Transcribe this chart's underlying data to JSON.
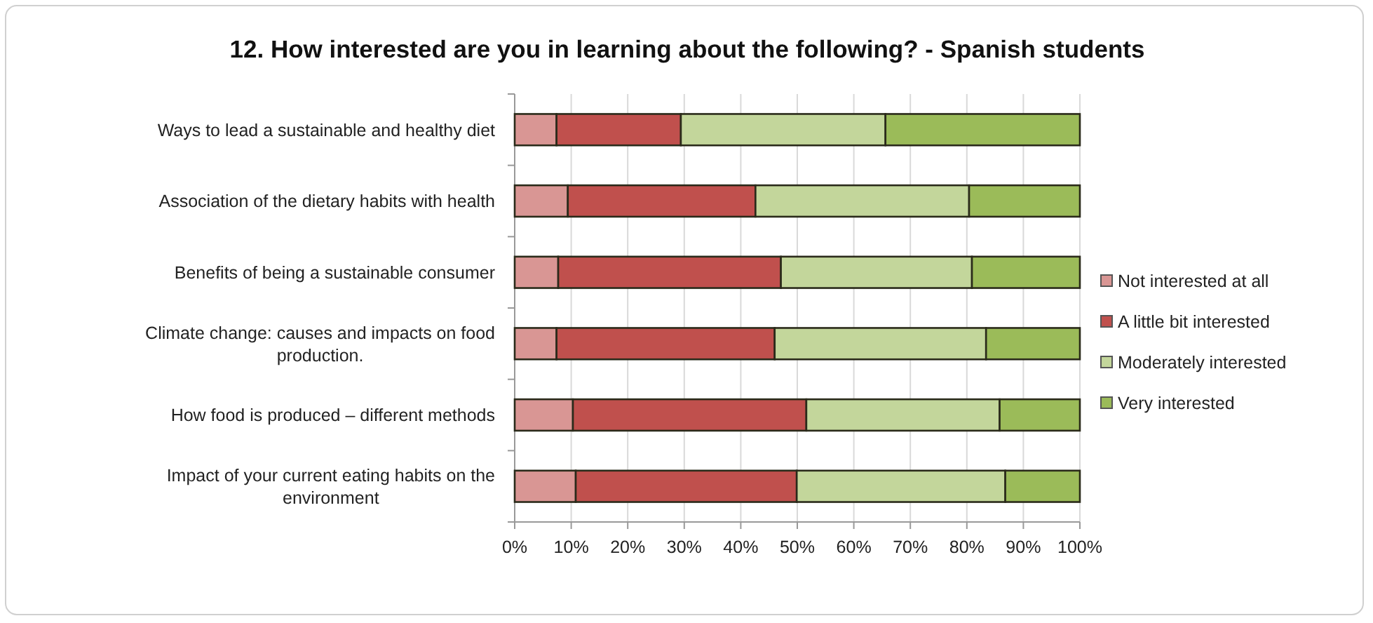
{
  "chart_data": {
    "type": "bar",
    "orientation": "horizontal",
    "stacked": true,
    "title": "12.  How interested are you in learning about the following? - Spanish students",
    "categories": [
      "Ways to lead a sustainable and healthy diet",
      "Association of the dietary habits with health",
      "Benefits of being a sustainable consumer",
      "Climate change: causes and impacts on food production.",
      "How food is produced – different methods",
      "Impact of your current eating habits on the environment"
    ],
    "series": [
      {
        "name": "Not interested at all",
        "color": "#d99694",
        "values": [
          7.4,
          9.4,
          7.7,
          7.4,
          10.3,
          10.8
        ]
      },
      {
        "name": "A little bit interested",
        "color": "#c0504d",
        "values": [
          22.0,
          33.2,
          39.4,
          38.6,
          41.3,
          39.1
        ]
      },
      {
        "name": "Moderately interested",
        "color": "#c3d69b",
        "values": [
          36.2,
          37.8,
          33.8,
          37.4,
          34.2,
          36.9
        ]
      },
      {
        "name": "Very interested",
        "color": "#9bbb59",
        "values": [
          34.4,
          19.6,
          19.1,
          16.6,
          14.2,
          13.2
        ]
      }
    ],
    "xlim": [
      0,
      100
    ],
    "xticks": [
      {
        "value": 0,
        "label": "0%"
      },
      {
        "value": 10,
        "label": "10%"
      },
      {
        "value": 20,
        "label": "20%"
      },
      {
        "value": 30,
        "label": "30%"
      },
      {
        "value": 40,
        "label": "40%"
      },
      {
        "value": 50,
        "label": "50%"
      },
      {
        "value": 60,
        "label": "60%"
      },
      {
        "value": 70,
        "label": "70%"
      },
      {
        "value": 80,
        "label": "80%"
      },
      {
        "value": 90,
        "label": "90%"
      },
      {
        "value": 100,
        "label": "100%"
      }
    ],
    "grid": "x",
    "legend": "right"
  }
}
